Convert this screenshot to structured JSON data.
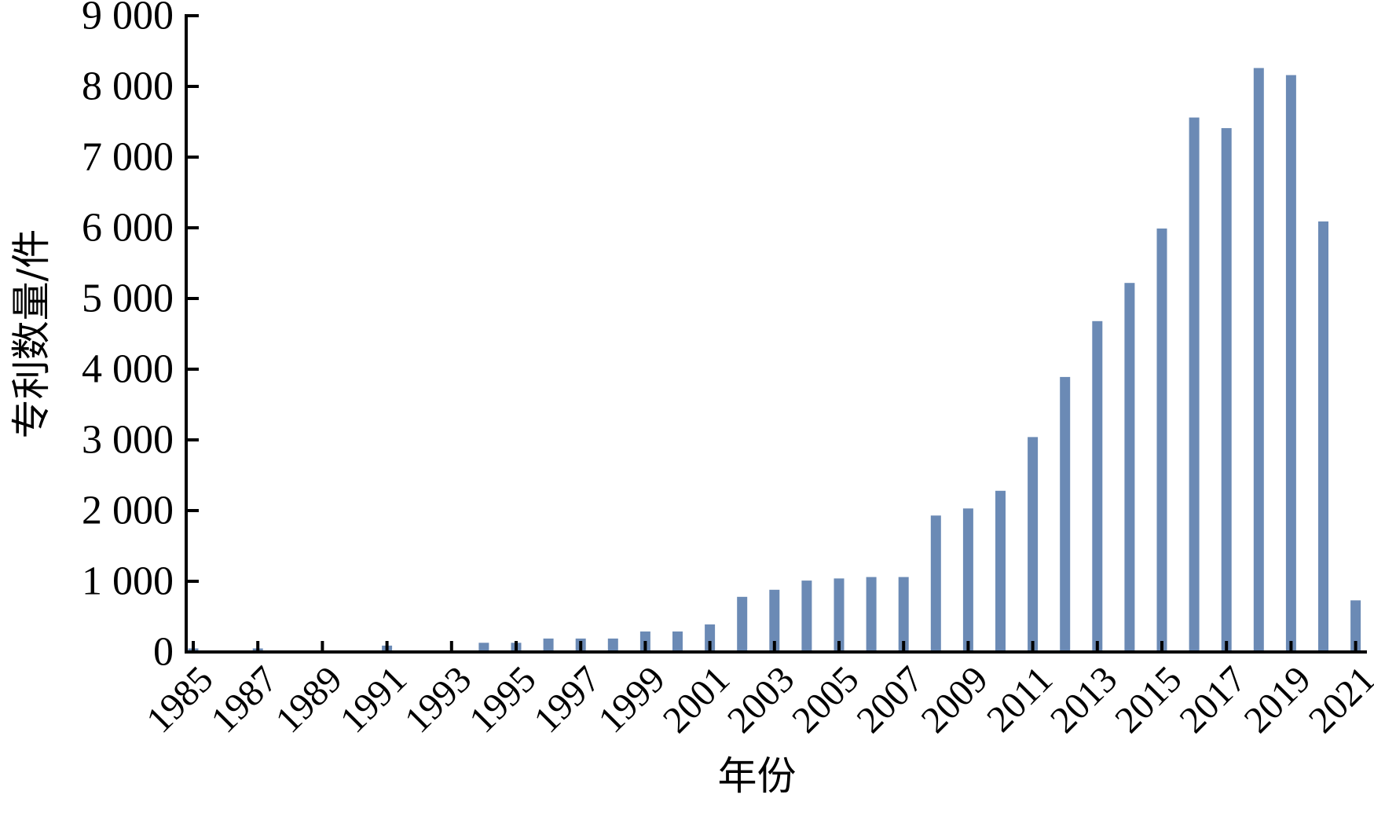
{
  "chart_data": {
    "type": "bar",
    "xlabel": "年份",
    "ylabel": "专利数量/件",
    "ylim": [
      0,
      9000
    ],
    "yticks": [
      0,
      1000,
      2000,
      3000,
      4000,
      5000,
      6000,
      7000,
      8000,
      9000
    ],
    "ytick_labels": [
      "0",
      "1 000",
      "2 000",
      "3 000",
      "4 000",
      "5 000",
      "6 000",
      "7 000",
      "8 000",
      "9 000"
    ],
    "xtick_labels": [
      "1985",
      "1987",
      "1989",
      "1991",
      "1993",
      "1995",
      "1997",
      "1999",
      "2001",
      "2003",
      "2005",
      "2007",
      "2009",
      "2011",
      "2013",
      "2015",
      "2017",
      "2019",
      "2021"
    ],
    "categories": [
      "1985",
      "1986",
      "1987",
      "1988",
      "1989",
      "1990",
      "1991",
      "1992",
      "1993",
      "1994",
      "1995",
      "1996",
      "1997",
      "1998",
      "1999",
      "2000",
      "2001",
      "2002",
      "2003",
      "2004",
      "2005",
      "2006",
      "2007",
      "2008",
      "2009",
      "2010",
      "2011",
      "2012",
      "2013",
      "2014",
      "2015",
      "2016",
      "2017",
      "2018",
      "2019",
      "2020",
      "2021"
    ],
    "values": [
      50,
      0,
      50,
      0,
      0,
      0,
      90,
      0,
      0,
      130,
      130,
      190,
      190,
      190,
      290,
      290,
      390,
      780,
      880,
      1010,
      1040,
      1060,
      1060,
      1930,
      2030,
      2280,
      3040,
      3890,
      4680,
      5220,
      5990,
      7560,
      7410,
      8260,
      8160,
      6090,
      730
    ],
    "grid": false,
    "bar_color": "#6b8ab5"
  }
}
